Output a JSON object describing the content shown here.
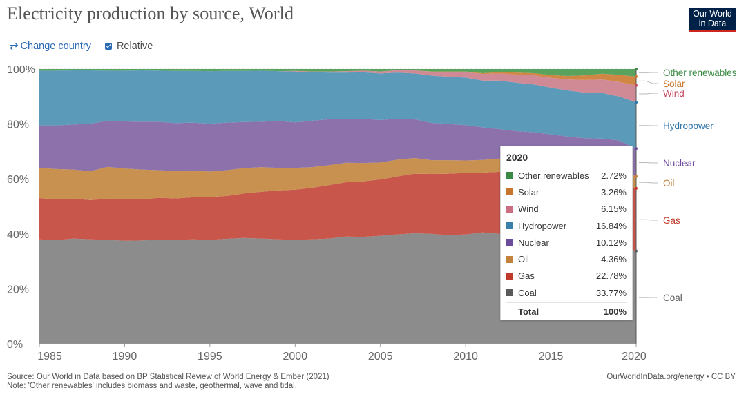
{
  "title": "Electricity production by source, World",
  "logo": {
    "line1": "Our World",
    "line2": "in Data"
  },
  "controls": {
    "change_country": "Change country",
    "relative": "Relative"
  },
  "footer": {
    "source": "Source: Our World in Data based on BP Statistical Review of World Energy & Ember (2021)",
    "note": "Note: 'Other renewables' includes biomass and waste, geothermal, wave and tidal.",
    "right": "OurWorldInData.org/energy • CC BY"
  },
  "tooltip": {
    "year": "2020",
    "rows": [
      {
        "name": "Other renewables",
        "value": "2.72%",
        "color": "#3a8a44"
      },
      {
        "name": "Solar",
        "value": "3.26%",
        "color": "#c9762d"
      },
      {
        "name": "Wind",
        "value": "6.15%",
        "color": "#cb6e82"
      },
      {
        "name": "Hydropower",
        "value": "16.84%",
        "color": "#3a80ab"
      },
      {
        "name": "Nuclear",
        "value": "10.12%",
        "color": "#6c4b9c"
      },
      {
        "name": "Oil",
        "value": "4.36%",
        "color": "#c3823b"
      },
      {
        "name": "Gas",
        "value": "22.78%",
        "color": "#c0392b"
      },
      {
        "name": "Coal",
        "value": "33.77%",
        "color": "#5a5a5a"
      }
    ],
    "total_label": "Total",
    "total_value": "100%"
  },
  "chart_data": {
    "type": "area",
    "stacked": true,
    "relative": true,
    "x": [
      1985,
      1986,
      1987,
      1988,
      1989,
      1990,
      1991,
      1992,
      1993,
      1994,
      1995,
      1996,
      1997,
      1998,
      1999,
      2000,
      2001,
      2002,
      2003,
      2004,
      2005,
      2006,
      2007,
      2008,
      2009,
      2010,
      2011,
      2012,
      2013,
      2014,
      2015,
      2016,
      2017,
      2018,
      2019,
      2020
    ],
    "xticks": [
      1985,
      1990,
      1995,
      2000,
      2005,
      2010,
      2015,
      2020
    ],
    "yticks": [
      "0%",
      "20%",
      "40%",
      "60%",
      "80%",
      "100%"
    ],
    "ylim": [
      0,
      100
    ],
    "series": [
      {
        "name": "Coal",
        "color": "#8c8c8c",
        "values": [
          38,
          37.7,
          38.3,
          38,
          37.8,
          37.5,
          37.6,
          37.9,
          37.8,
          38,
          37.8,
          38.2,
          38.5,
          38.3,
          38,
          37.8,
          38,
          38.3,
          39,
          38.9,
          39.3,
          39.8,
          40.2,
          40,
          39.5,
          39.8,
          40.5,
          40,
          40,
          39.5,
          38.5,
          37.5,
          37,
          37,
          36,
          33.77
        ]
      },
      {
        "name": "Gas",
        "color": "#c8564a",
        "values": [
          15,
          14.8,
          14.5,
          14.3,
          15,
          15.1,
          14.9,
          15.2,
          15.1,
          15.3,
          15.6,
          15.6,
          16.2,
          17,
          17.8,
          18.3,
          18.8,
          19.5,
          19.8,
          20.2,
          20.5,
          21.1,
          21.7,
          21.8,
          22.4,
          22.4,
          21.8,
          22.6,
          22.3,
          22.4,
          22.7,
          23,
          23.2,
          23.2,
          23.3,
          22.78
        ]
      },
      {
        "name": "Oil",
        "color": "#c8914f",
        "values": [
          11,
          11.1,
          10.6,
          10.5,
          11.6,
          11.2,
          10.9,
          10.1,
          9.9,
          9.8,
          9.3,
          9.4,
          9.2,
          9,
          8.2,
          7.9,
          7.5,
          7.2,
          7.1,
          6.7,
          6.2,
          6.1,
          5.7,
          5,
          4.9,
          4.5,
          4.6,
          4.8,
          4.5,
          4.4,
          4.4,
          4.4,
          4.3,
          4.3,
          4.3,
          4.36
        ]
      },
      {
        "name": "Nuclear",
        "color": "#8c71ab",
        "values": [
          15.5,
          15.9,
          16.4,
          17.3,
          16.8,
          17.1,
          17.4,
          17.6,
          17.5,
          17.4,
          17.4,
          17.3,
          16.8,
          16.5,
          17.1,
          16.6,
          16.9,
          16.7,
          16,
          16.1,
          15.4,
          14.9,
          14.1,
          13.6,
          13.2,
          12.9,
          11.9,
          10.7,
          10.6,
          10.7,
          10.6,
          10.5,
          10.3,
          10.2,
          10.4,
          10.12
        ]
      },
      {
        "name": "Hydropower",
        "color": "#5c9ab9",
        "values": [
          19.9,
          19.9,
          19.7,
          19.4,
          18.2,
          18.5,
          18.7,
          18.6,
          19,
          18.8,
          19.1,
          18.8,
          18.6,
          18.6,
          18.1,
          18.5,
          17.6,
          17,
          16.8,
          16.9,
          17,
          16.8,
          16.7,
          17.2,
          17.2,
          17.3,
          17,
          17.7,
          17.6,
          17.4,
          17,
          16.8,
          16.6,
          16.6,
          16,
          16.84
        ]
      },
      {
        "name": "Wind",
        "color": "#d08a96",
        "values": [
          0,
          0,
          0,
          0,
          0,
          0,
          0,
          0,
          0,
          0,
          0,
          0,
          0,
          0,
          0,
          0.2,
          0.3,
          0.4,
          0.5,
          0.6,
          0.7,
          0.9,
          1.1,
          1.4,
          1.8,
          2,
          2.4,
          2.6,
          3,
          3.3,
          3.6,
          4,
          4.6,
          4.9,
          5.3,
          6.15
        ]
      },
      {
        "name": "Solar",
        "color": "#cf8743",
        "values": [
          0,
          0,
          0,
          0,
          0,
          0,
          0,
          0,
          0,
          0,
          0,
          0,
          0,
          0,
          0,
          0,
          0,
          0,
          0,
          0,
          0,
          0,
          0,
          0.1,
          0.1,
          0.2,
          0.3,
          0.5,
          0.7,
          0.8,
          1,
          1.3,
          1.7,
          2.1,
          2.6,
          3.26
        ]
      },
      {
        "name": "Other renewables",
        "color": "#5aa35f",
        "values": [
          0.6,
          0.6,
          0.5,
          0.5,
          0.6,
          0.6,
          0.5,
          0.6,
          0.7,
          0.7,
          0.8,
          0.7,
          0.7,
          0.6,
          0.8,
          0.7,
          0.9,
          0.9,
          0.8,
          0.6,
          0.9,
          0.4,
          0.5,
          0.9,
          0.9,
          0.9,
          1.5,
          1.1,
          1.3,
          1.5,
          2.2,
          2.5,
          2.3,
          1.7,
          2.1,
          2.72
        ]
      }
    ],
    "legend": [
      {
        "name": "Other renewables",
        "color": "#3a8a44"
      },
      {
        "name": "Solar",
        "color": "#c9762d"
      },
      {
        "name": "Wind",
        "color": "#c2485e"
      },
      {
        "name": "Hydropower",
        "color": "#2e74a6"
      },
      {
        "name": "Nuclear",
        "color": "#6c4b9c"
      },
      {
        "name": "Oil",
        "color": "#c3823b"
      },
      {
        "name": "Gas",
        "color": "#c0392b"
      },
      {
        "name": "Coal",
        "color": "#5a5a5a"
      }
    ]
  }
}
